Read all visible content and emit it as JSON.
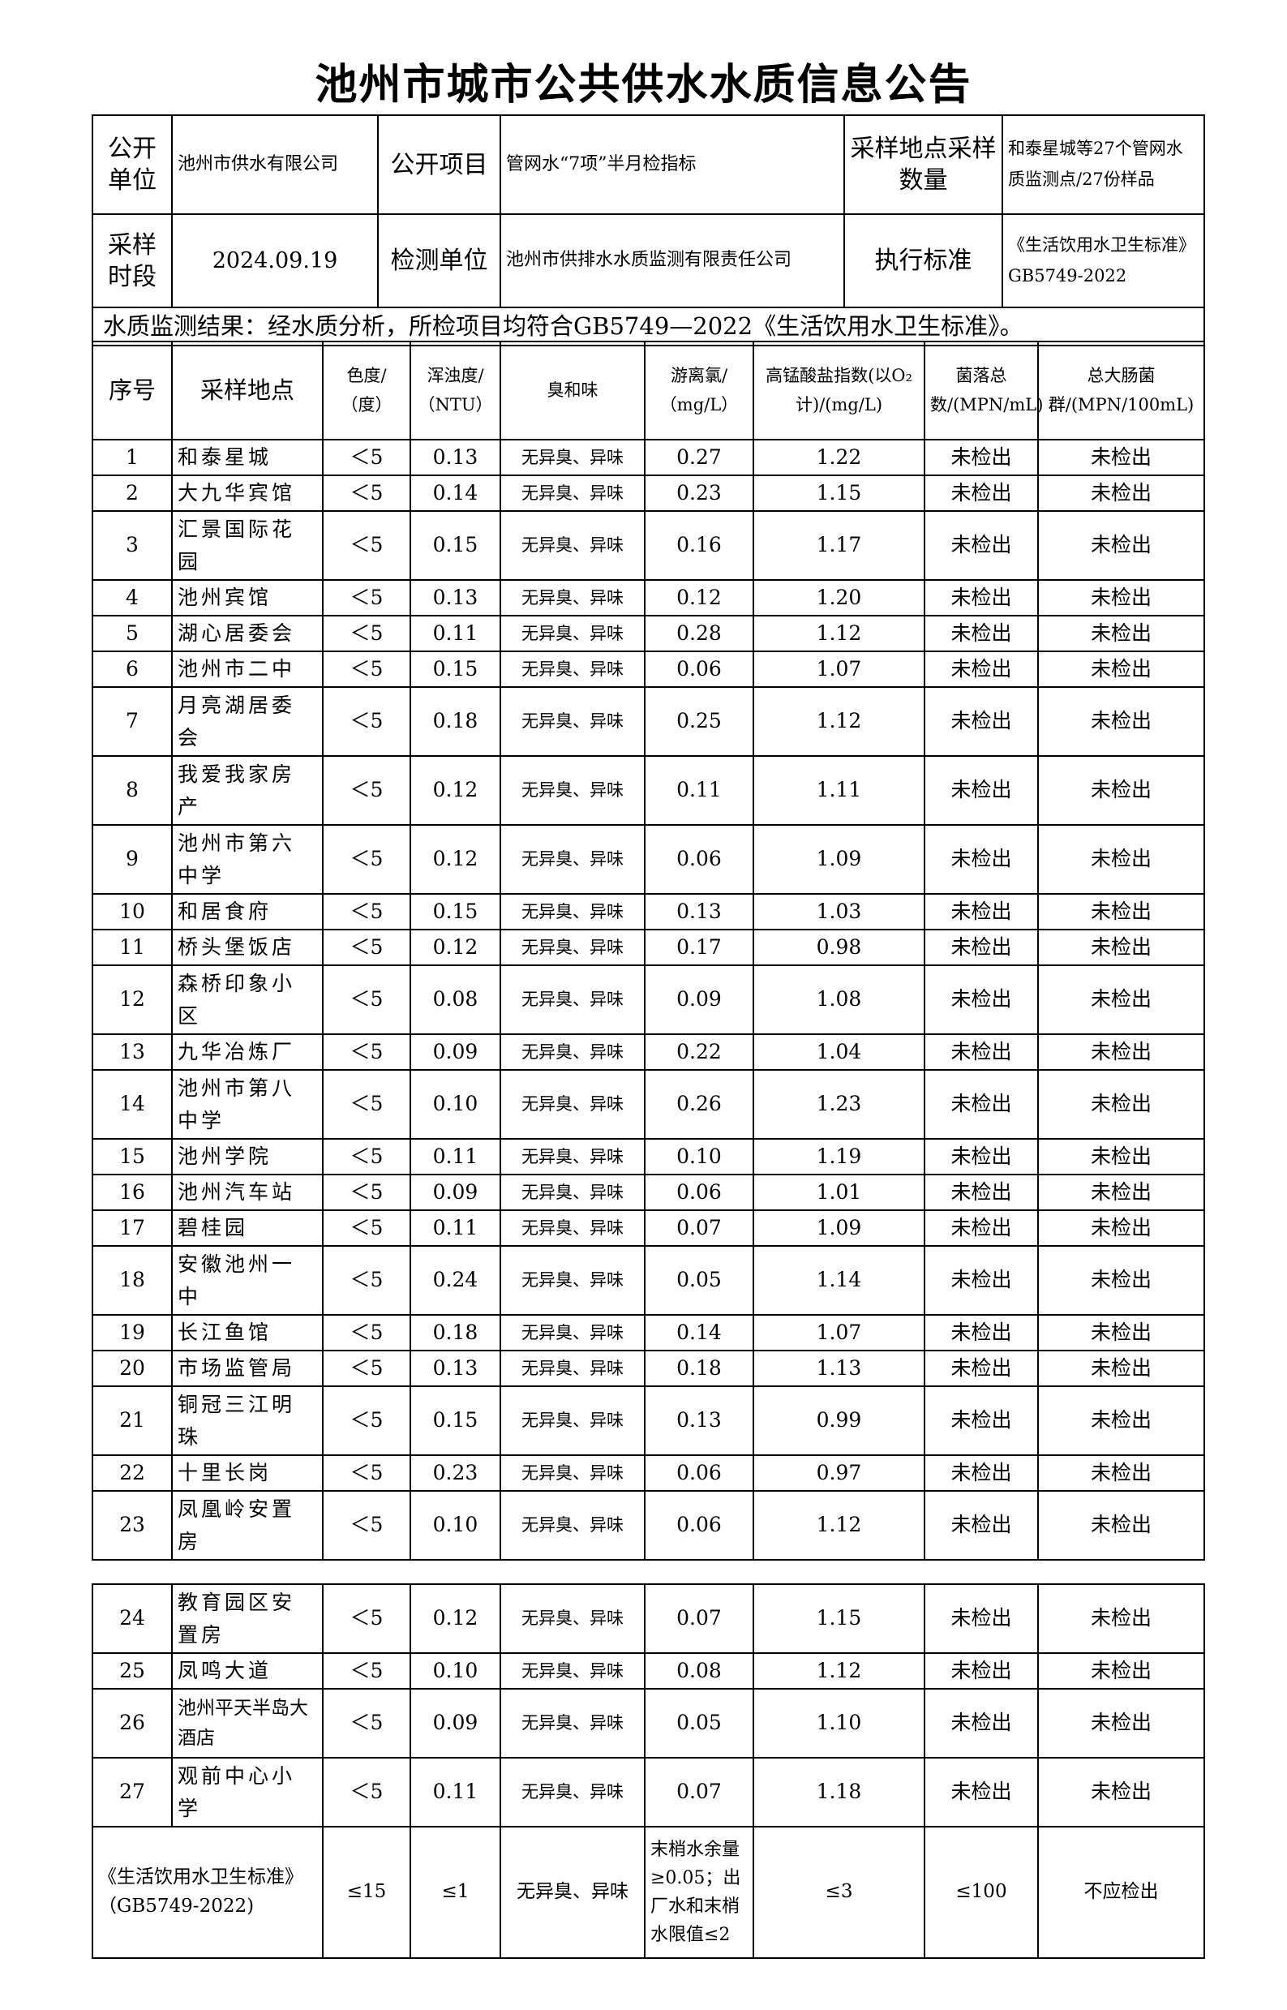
{
  "title": "池州市城市公共供水水质信息公告",
  "info": {
    "publisher_label": "公开单位",
    "publisher": "池州市供水有限公司",
    "item_label": "公开项目",
    "item": "管网水“7项”半月检指标",
    "sites_label": "采样地点采样数量",
    "sites": "和泰星城等27个管网水质监测点/27份样品",
    "date_label": "采样时段",
    "date": "2024.09.19",
    "lab_label": "检测单位",
    "lab": "池州市供排水水质监测有限责任公司",
    "standard_label": "执行标准",
    "standard": "《生活饮用水卫生标准》GB5749-2022"
  },
  "conclusion": "水质监测结果：经水质分析，所检项目均符合GB5749—2022《生活饮用水卫生标准》。",
  "headers": [
    "序号",
    "采样地点",
    "色度/（度）",
    "浑浊度/（NTU）",
    "臭和味",
    "游离氯/（mg/L）",
    "高锰酸盐指数(以O₂计)/(mg/L)",
    "菌落总数/(MPN/mL)",
    "总大肠菌群/(MPN/100mL)"
  ],
  "rows": [
    [
      "1",
      "和泰星城",
      "＜5",
      "0.13",
      "无异臭、异味",
      "0.27",
      "1.22",
      "未检出",
      "未检出"
    ],
    [
      "2",
      "大九华宾馆",
      "＜5",
      "0.14",
      "无异臭、异味",
      "0.23",
      "1.15",
      "未检出",
      "未检出"
    ],
    [
      "3",
      "汇景国际花园",
      "＜5",
      "0.15",
      "无异臭、异味",
      "0.16",
      "1.17",
      "未检出",
      "未检出"
    ],
    [
      "4",
      "池州宾馆",
      "＜5",
      "0.13",
      "无异臭、异味",
      "0.12",
      "1.20",
      "未检出",
      "未检出"
    ],
    [
      "5",
      "湖心居委会",
      "＜5",
      "0.11",
      "无异臭、异味",
      "0.28",
      "1.12",
      "未检出",
      "未检出"
    ],
    [
      "6",
      "池州市二中",
      "＜5",
      "0.15",
      "无异臭、异味",
      "0.06",
      "1.07",
      "未检出",
      "未检出"
    ],
    [
      "7",
      "月亮湖居委会",
      "＜5",
      "0.18",
      "无异臭、异味",
      "0.25",
      "1.12",
      "未检出",
      "未检出"
    ],
    [
      "8",
      "我爱我家房产",
      "＜5",
      "0.12",
      "无异臭、异味",
      "0.11",
      "1.11",
      "未检出",
      "未检出"
    ],
    [
      "9",
      "池州市第六中学",
      "＜5",
      "0.12",
      "无异臭、异味",
      "0.06",
      "1.09",
      "未检出",
      "未检出"
    ],
    [
      "10",
      "和居食府",
      "＜5",
      "0.15",
      "无异臭、异味",
      "0.13",
      "1.03",
      "未检出",
      "未检出"
    ],
    [
      "11",
      "桥头堡饭店",
      "＜5",
      "0.12",
      "无异臭、异味",
      "0.17",
      "0.98",
      "未检出",
      "未检出"
    ],
    [
      "12",
      "森桥印象小区",
      "＜5",
      "0.08",
      "无异臭、异味",
      "0.09",
      "1.08",
      "未检出",
      "未检出"
    ],
    [
      "13",
      "九华冶炼厂",
      "＜5",
      "0.09",
      "无异臭、异味",
      "0.22",
      "1.04",
      "未检出",
      "未检出"
    ],
    [
      "14",
      "池州市第八中学",
      "＜5",
      "0.10",
      "无异臭、异味",
      "0.26",
      "1.23",
      "未检出",
      "未检出"
    ],
    [
      "15",
      "池州学院",
      "＜5",
      "0.11",
      "无异臭、异味",
      "0.10",
      "1.19",
      "未检出",
      "未检出"
    ],
    [
      "16",
      "池州汽车站",
      "＜5",
      "0.09",
      "无异臭、异味",
      "0.06",
      "1.01",
      "未检出",
      "未检出"
    ],
    [
      "17",
      "碧桂园",
      "＜5",
      "0.11",
      "无异臭、异味",
      "0.07",
      "1.09",
      "未检出",
      "未检出"
    ],
    [
      "18",
      "安徽池州一中",
      "＜5",
      "0.24",
      "无异臭、异味",
      "0.05",
      "1.14",
      "未检出",
      "未检出"
    ],
    [
      "19",
      "长江鱼馆",
      "＜5",
      "0.18",
      "无异臭、异味",
      "0.14",
      "1.07",
      "未检出",
      "未检出"
    ],
    [
      "20",
      "市场监管局",
      "＜5",
      "0.13",
      "无异臭、异味",
      "0.18",
      "1.13",
      "未检出",
      "未检出"
    ],
    [
      "21",
      "铜冠三江明珠",
      "＜5",
      "0.15",
      "无异臭、异味",
      "0.13",
      "0.99",
      "未检出",
      "未检出"
    ],
    [
      "22",
      "十里长岗",
      "＜5",
      "0.23",
      "无异臭、异味",
      "0.06",
      "0.97",
      "未检出",
      "未检出"
    ],
    [
      "23",
      "凤凰岭安置房",
      "＜5",
      "0.10",
      "无异臭、异味",
      "0.06",
      "1.12",
      "未检出",
      "未检出"
    ],
    [
      "24",
      "教育园区安置房",
      "＜5",
      "0.12",
      "无异臭、异味",
      "0.07",
      "1.15",
      "未检出",
      "未检出"
    ],
    [
      "25",
      "凤鸣大道",
      "＜5",
      "0.10",
      "无异臭、异味",
      "0.08",
      "1.12",
      "未检出",
      "未检出"
    ],
    [
      "26",
      "池州平天半岛大酒店",
      "＜5",
      "0.09",
      "无异臭、异味",
      "0.05",
      "1.10",
      "未检出",
      "未检出"
    ],
    [
      "27",
      "观前中心小学",
      "＜5",
      "0.11",
      "无异臭、异味",
      "0.07",
      "1.18",
      "未检出",
      "未检出"
    ]
  ],
  "standard_row": [
    "《生活饮用水卫生标准》（GB5749-2022)",
    "≤15",
    "≤1",
    "无异臭、异味",
    "末梢水余量≥0.05；出厂水和末梢水限值≤2",
    "≤3",
    "≤100",
    "不应检出"
  ]
}
